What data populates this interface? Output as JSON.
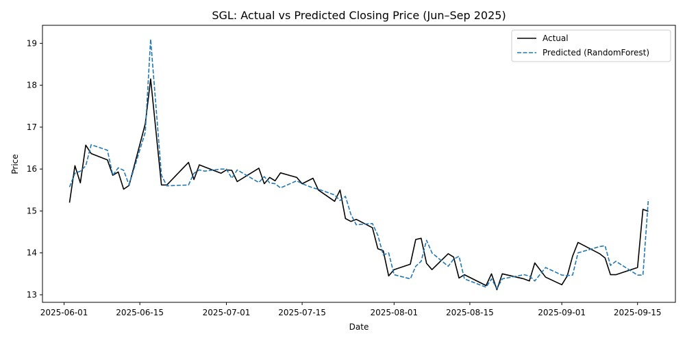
{
  "chart_data": {
    "type": "line",
    "title": "SGL: Actual vs Predicted Closing Price (Jun–Sep 2025)",
    "xlabel": "Date",
    "ylabel": "Price",
    "x_ticks": [
      "2025-06-01",
      "2025-06-15",
      "2025-07-01",
      "2025-07-15",
      "2025-08-01",
      "2025-08-15",
      "2025-09-01",
      "2025-09-15"
    ],
    "y_ticks": [
      13,
      14,
      15,
      16,
      17,
      18,
      19
    ],
    "xlim": [
      "2025-05-28",
      "2025-09-22"
    ],
    "ylim": [
      12.82,
      19.43
    ],
    "grid": false,
    "legend_position": "top-right",
    "series": [
      {
        "name": "Actual",
        "color": "#000000",
        "style": "solid",
        "x": [
          "2025-06-02",
          "2025-06-03",
          "2025-06-04",
          "2025-06-05",
          "2025-06-06",
          "2025-06-09",
          "2025-06-10",
          "2025-06-11",
          "2025-06-12",
          "2025-06-13",
          "2025-06-16",
          "2025-06-17",
          "2025-06-19",
          "2025-06-20",
          "2025-06-24",
          "2025-06-25",
          "2025-06-26",
          "2025-06-27",
          "2025-06-30",
          "2025-07-01",
          "2025-07-02",
          "2025-07-03",
          "2025-07-07",
          "2025-07-08",
          "2025-07-09",
          "2025-07-10",
          "2025-07-11",
          "2025-07-14",
          "2025-07-15",
          "2025-07-17",
          "2025-07-18",
          "2025-07-21",
          "2025-07-22",
          "2025-07-23",
          "2025-07-24",
          "2025-07-25",
          "2025-07-28",
          "2025-07-29",
          "2025-07-30",
          "2025-07-31",
          "2025-08-01",
          "2025-08-04",
          "2025-08-05",
          "2025-08-06",
          "2025-08-07",
          "2025-08-08",
          "2025-08-11",
          "2025-08-12",
          "2025-08-13",
          "2025-08-14",
          "2025-08-18",
          "2025-08-19",
          "2025-08-20",
          "2025-08-21",
          "2025-08-25",
          "2025-08-26",
          "2025-08-27",
          "2025-08-29",
          "2025-09-01",
          "2025-09-02",
          "2025-09-03",
          "2025-09-04",
          "2025-09-08",
          "2025-09-09",
          "2025-09-10",
          "2025-09-11",
          "2025-09-15",
          "2025-09-16",
          "2025-09-17"
        ],
        "values": [
          15.2,
          16.08,
          15.67,
          16.57,
          16.37,
          16.22,
          15.85,
          15.93,
          15.52,
          15.61,
          17.08,
          18.15,
          15.62,
          15.62,
          16.16,
          15.75,
          16.1,
          16.05,
          15.9,
          15.98,
          15.97,
          15.7,
          16.02,
          15.65,
          15.8,
          15.72,
          15.91,
          15.8,
          15.65,
          15.78,
          15.5,
          15.23,
          15.5,
          14.82,
          14.75,
          14.8,
          14.6,
          14.1,
          14.05,
          13.45,
          13.6,
          13.73,
          14.32,
          14.35,
          13.75,
          13.6,
          13.98,
          13.9,
          13.4,
          13.48,
          13.22,
          13.5,
          13.12,
          13.5,
          13.38,
          13.33,
          13.76,
          13.42,
          13.24,
          13.45,
          13.92,
          14.25,
          13.98,
          13.88,
          13.48,
          13.48,
          13.65,
          15.04,
          14.99
        ]
      },
      {
        "name": "Predicted (RandomForest)",
        "color": "#1f77b4",
        "style": "dashed",
        "x": [
          "2025-06-02",
          "2025-06-03",
          "2025-06-04",
          "2025-06-05",
          "2025-06-06",
          "2025-06-09",
          "2025-06-10",
          "2025-06-11",
          "2025-06-12",
          "2025-06-13",
          "2025-06-16",
          "2025-06-17",
          "2025-06-19",
          "2025-06-20",
          "2025-06-24",
          "2025-06-25",
          "2025-06-26",
          "2025-06-27",
          "2025-06-30",
          "2025-07-01",
          "2025-07-02",
          "2025-07-03",
          "2025-07-07",
          "2025-07-08",
          "2025-07-09",
          "2025-07-10",
          "2025-07-11",
          "2025-07-14",
          "2025-07-15",
          "2025-07-17",
          "2025-07-18",
          "2025-07-21",
          "2025-07-22",
          "2025-07-23",
          "2025-07-24",
          "2025-07-25",
          "2025-07-28",
          "2025-07-29",
          "2025-07-30",
          "2025-07-31",
          "2025-08-01",
          "2025-08-04",
          "2025-08-05",
          "2025-08-06",
          "2025-08-07",
          "2025-08-08",
          "2025-08-11",
          "2025-08-12",
          "2025-08-13",
          "2025-08-14",
          "2025-08-18",
          "2025-08-19",
          "2025-08-20",
          "2025-08-21",
          "2025-08-25",
          "2025-08-26",
          "2025-08-27",
          "2025-08-29",
          "2025-09-01",
          "2025-09-02",
          "2025-09-03",
          "2025-09-04",
          "2025-09-08",
          "2025-09-09",
          "2025-09-10",
          "2025-09-11",
          "2025-09-15",
          "2025-09-16",
          "2025-09-17"
        ],
        "values": [
          15.57,
          15.9,
          15.95,
          16.08,
          16.58,
          16.45,
          15.85,
          16.03,
          15.97,
          15.62,
          16.88,
          19.1,
          15.85,
          15.6,
          15.62,
          15.9,
          15.98,
          15.95,
          16.0,
          16.0,
          15.78,
          15.98,
          15.68,
          15.82,
          15.67,
          15.65,
          15.55,
          15.72,
          15.65,
          15.55,
          15.52,
          15.38,
          15.25,
          15.35,
          14.92,
          14.67,
          14.7,
          14.42,
          13.95,
          14.0,
          13.48,
          13.38,
          13.68,
          13.8,
          14.3,
          14.0,
          13.68,
          13.85,
          13.92,
          13.38,
          13.18,
          13.38,
          13.15,
          13.38,
          13.48,
          13.45,
          13.33,
          13.65,
          13.47,
          13.46,
          13.47,
          14.0,
          14.15,
          14.17,
          13.7,
          13.8,
          13.47,
          13.47,
          15.28
        ]
      }
    ]
  }
}
